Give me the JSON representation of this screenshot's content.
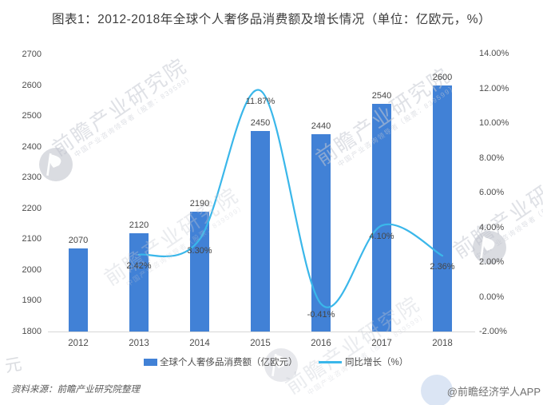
{
  "chart_data": {
    "type": "combo-bar-line",
    "title": "图表1：2012-2018年全球个人奢侈品消费额及增长情况（单位：亿欧元，%）",
    "categories": [
      "2012",
      "2013",
      "2014",
      "2015",
      "2016",
      "2017",
      "2018"
    ],
    "series": [
      {
        "name": "全球个人奢侈品消费额（亿欧元）",
        "type": "bar",
        "axis": "left",
        "values": [
          2070,
          2120,
          2190,
          2450,
          2440,
          2540,
          2600
        ],
        "labels": [
          "2070",
          "2120",
          "2190",
          "2450",
          "2440",
          "2540",
          "2600"
        ],
        "color": "#4181D6"
      },
      {
        "name": "同比增长（%）",
        "type": "line",
        "axis": "right",
        "values": [
          null,
          2.42,
          3.3,
          11.87,
          -0.41,
          4.1,
          2.36
        ],
        "labels": [
          null,
          "2.42%",
          "3.30%",
          "11.87%",
          "-0.41%",
          "4.10%",
          "2.36%"
        ],
        "color": "#3AB7EA"
      }
    ],
    "left_axis": {
      "min": 1800,
      "max": 2700,
      "step": 100,
      "ticks": [
        "2700",
        "2600",
        "2500",
        "2400",
        "2300",
        "2200",
        "2100",
        "2000",
        "1900",
        "1800"
      ]
    },
    "right_axis": {
      "min": -2,
      "max": 14,
      "step": 2,
      "ticks": [
        "14.00%",
        "12.00%",
        "10.00%",
        "8.00%",
        "6.00%",
        "4.00%",
        "2.00%",
        "0.00%",
        "-2.00%"
      ]
    },
    "grid": false,
    "legend_position": "bottom"
  },
  "footer": {
    "source": "资料来源：前瞻产业研究院整理",
    "credit": "@前瞻经济学人APP"
  },
  "watermark": {
    "main": "前瞻产业研究院",
    "sub": "中国产业咨询领导者（股票：839599）",
    "corner": "元"
  },
  "colors": {
    "bar": "#4181D6",
    "line": "#3AB7EA",
    "axis_text": "#4d4d4d",
    "title_text": "#3c3c3c",
    "axis_line": "#d6d6d6"
  }
}
